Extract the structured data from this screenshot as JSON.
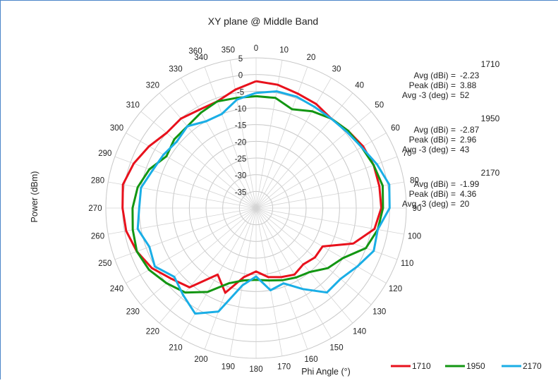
{
  "chart_data": {
    "type": "polar-line",
    "title": "XY plane @ Middle Band",
    "ylabel": "Power (dBm)",
    "xlabel": "Phi  Angle (°)",
    "radial_range": [
      -40,
      5
    ],
    "radial_ticks": [
      5,
      0,
      -5,
      -10,
      -15,
      -20,
      -25,
      -30,
      -35
    ],
    "angle_ticks": [
      0,
      10,
      20,
      30,
      40,
      50,
      60,
      70,
      80,
      90,
      100,
      110,
      120,
      130,
      140,
      150,
      160,
      170,
      180,
      190,
      200,
      210,
      220,
      230,
      240,
      250,
      260,
      270,
      280,
      290,
      300,
      310,
      320,
      330,
      340,
      350,
      360
    ],
    "grid": true,
    "legend_position": "bottom-right",
    "series": [
      {
        "name": "1710",
        "color": "#e8111c",
        "stats": [
          {
            "label": "Avg (dBi) =",
            "value": "-2.23"
          },
          {
            "label": "Peak (dBi) =",
            "value": "3.88"
          },
          {
            "label": "Avg -3 (deg) =",
            "value": "52"
          }
        ],
        "points": [
          [
            0,
            -2
          ],
          [
            10,
            -2.5
          ],
          [
            20,
            -3.5
          ],
          [
            30,
            -4
          ],
          [
            40,
            -5
          ],
          [
            50,
            -4
          ],
          [
            60,
            -3
          ],
          [
            70,
            -2.5
          ],
          [
            80,
            -2.5
          ],
          [
            90,
            -2.5
          ],
          [
            100,
            -4
          ],
          [
            110,
            -9
          ],
          [
            120,
            -17
          ],
          [
            130,
            -17
          ],
          [
            140,
            -18
          ],
          [
            150,
            -17
          ],
          [
            160,
            -18
          ],
          [
            170,
            -19
          ],
          [
            180,
            -21
          ],
          [
            190,
            -19
          ],
          [
            200,
            -13
          ],
          [
            210,
            -17
          ],
          [
            220,
            -9
          ],
          [
            230,
            -7
          ],
          [
            240,
            -4
          ],
          [
            250,
            -2
          ],
          [
            260,
            -0.5
          ],
          [
            270,
            0
          ],
          [
            280,
            0.5
          ],
          [
            290,
            -1
          ],
          [
            300,
            -3
          ],
          [
            310,
            -5
          ],
          [
            320,
            -5
          ],
          [
            330,
            -6
          ],
          [
            340,
            -6
          ],
          [
            350,
            -4
          ],
          [
            360,
            -2
          ]
        ]
      },
      {
        "name": "1950",
        "color": "#129612",
        "stats": [
          {
            "label": "Avg (dBi) =",
            "value": "-2.87"
          },
          {
            "label": "Peak (dBi) =",
            "value": "2.96"
          },
          {
            "label": "Avg -3 (deg) =",
            "value": "43"
          }
        ],
        "points": [
          [
            0,
            -6.5
          ],
          [
            10,
            -6.5
          ],
          [
            20,
            -8.5
          ],
          [
            30,
            -6.5
          ],
          [
            40,
            -5
          ],
          [
            50,
            -4
          ],
          [
            60,
            -3.5
          ],
          [
            70,
            -2.5
          ],
          [
            80,
            -1.5
          ],
          [
            90,
            -2
          ],
          [
            100,
            -3
          ],
          [
            110,
            -5
          ],
          [
            120,
            -10
          ],
          [
            130,
            -12
          ],
          [
            140,
            -15
          ],
          [
            150,
            -16
          ],
          [
            160,
            -17
          ],
          [
            170,
            -18
          ],
          [
            180,
            -18.5
          ],
          [
            190,
            -18
          ],
          [
            200,
            -16
          ],
          [
            210,
            -11
          ],
          [
            220,
            -7
          ],
          [
            230,
            -5
          ],
          [
            240,
            -3
          ],
          [
            250,
            -2
          ],
          [
            260,
            -2.5
          ],
          [
            270,
            -3
          ],
          [
            280,
            -4
          ],
          [
            290,
            -6
          ],
          [
            300,
            -9
          ],
          [
            310,
            -8
          ],
          [
            320,
            -8
          ],
          [
            330,
            -7
          ],
          [
            340,
            -6
          ],
          [
            350,
            -6.5
          ],
          [
            360,
            -6.5
          ]
        ]
      },
      {
        "name": "2170",
        "color": "#1aaee6",
        "stats": [
          {
            "label": "Avg (dBi) =",
            "value": "-1.99"
          },
          {
            "label": "Peak (dBi) =",
            "value": "4.36"
          },
          {
            "label": "Avg -3 (deg) =",
            "value": "20"
          }
        ],
        "points": [
          [
            0,
            -5.5
          ],
          [
            10,
            -4.5
          ],
          [
            20,
            -4.5
          ],
          [
            30,
            -5
          ],
          [
            40,
            -5
          ],
          [
            50,
            -4.5
          ],
          [
            60,
            -3.5
          ],
          [
            70,
            -1.5
          ],
          [
            80,
            0.5
          ],
          [
            90,
            0
          ],
          [
            100,
            -3
          ],
          [
            110,
            -2.5
          ],
          [
            120,
            -5
          ],
          [
            130,
            -7
          ],
          [
            140,
            -7
          ],
          [
            150,
            -12
          ],
          [
            160,
            -16
          ],
          [
            170,
            -15
          ],
          [
            180,
            -19.5
          ],
          [
            190,
            -16.5
          ],
          [
            200,
            -7
          ],
          [
            210,
            -3.5
          ],
          [
            220,
            -6
          ],
          [
            230,
            -8
          ],
          [
            240,
            -5
          ],
          [
            250,
            -6
          ],
          [
            260,
            -4
          ],
          [
            270,
            -5
          ],
          [
            280,
            -5
          ],
          [
            290,
            -7
          ],
          [
            300,
            -8
          ],
          [
            310,
            -9
          ],
          [
            320,
            -8
          ],
          [
            330,
            -10
          ],
          [
            340,
            -10
          ],
          [
            350,
            -7
          ],
          [
            360,
            -5.5
          ]
        ]
      }
    ]
  }
}
